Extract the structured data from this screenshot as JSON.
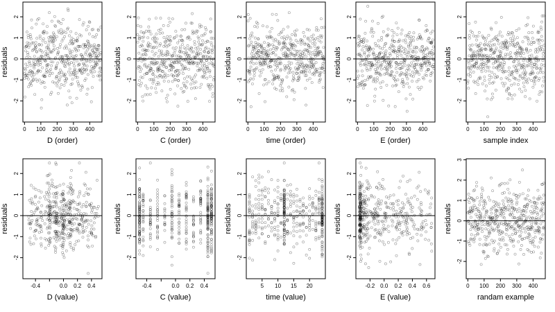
{
  "chart_data": [
    {
      "type": "scatter",
      "xlabel": "D (order)",
      "ylabel": "residuals",
      "xlim": [
        -10,
        475
      ],
      "ylim": [
        -3,
        2.7
      ],
      "xticks": [
        0,
        100,
        200,
        300,
        400
      ],
      "yticks": [
        -2,
        -1,
        0,
        1,
        2
      ],
      "reference_line_y": 0,
      "points": {
        "generator": "order",
        "n": 470,
        "seed": 11
      }
    },
    {
      "type": "scatter",
      "xlabel": "C (order)",
      "ylabel": "residuals",
      "xlim": [
        -10,
        475
      ],
      "ylim": [
        -3,
        2.7
      ],
      "xticks": [
        0,
        100,
        200,
        300,
        400
      ],
      "yticks": [
        -2,
        -1,
        0,
        1,
        2
      ],
      "reference_line_y": 0,
      "points": {
        "generator": "order",
        "n": 470,
        "seed": 12
      }
    },
    {
      "type": "scatter",
      "xlabel": "time (order)",
      "ylabel": "residuals",
      "xlim": [
        -10,
        475
      ],
      "ylim": [
        -3,
        2.7
      ],
      "xticks": [
        0,
        100,
        200,
        300,
        400
      ],
      "yticks": [
        -2,
        -1,
        0,
        1,
        2
      ],
      "reference_line_y": 0,
      "points": {
        "generator": "order",
        "n": 470,
        "seed": 13
      }
    },
    {
      "type": "scatter",
      "xlabel": "E (order)",
      "ylabel": "residuals",
      "xlim": [
        -10,
        475
      ],
      "ylim": [
        -3,
        2.7
      ],
      "xticks": [
        0,
        100,
        200,
        300,
        400
      ],
      "yticks": [
        -2,
        -1,
        0,
        1,
        2
      ],
      "reference_line_y": 0,
      "points": {
        "generator": "order",
        "n": 470,
        "seed": 14
      }
    },
    {
      "type": "scatter",
      "xlabel": "sample index",
      "ylabel": "residuals",
      "xlim": [
        -10,
        475
      ],
      "ylim": [
        -3,
        2.7
      ],
      "xticks": [
        0,
        100,
        200,
        300,
        400
      ],
      "yticks": [
        -2,
        -1,
        0,
        1,
        2
      ],
      "reference_line_y": 0,
      "points": {
        "generator": "order",
        "n": 470,
        "seed": 15
      }
    },
    {
      "type": "scatter",
      "xlabel": "D (value)",
      "ylabel": "residuals",
      "xlim": [
        -0.58,
        0.55
      ],
      "ylim": [
        -3,
        2.7
      ],
      "xticks": [
        -0.4,
        -0.2,
        0,
        0.2,
        0.4
      ],
      "xtick_labels": [
        "-0.4",
        "",
        "0.0",
        "0.2",
        "0.4"
      ],
      "yticks": [
        -2,
        -1,
        0,
        1,
        2
      ],
      "reference_line_y": 0,
      "points": {
        "generator": "continuous",
        "n": 470,
        "seed": 21,
        "range": [
          -0.5,
          0.5
        ],
        "clusters": [
          -0.2,
          -0.1,
          0,
          0.1
        ]
      }
    },
    {
      "type": "scatter",
      "xlabel": "C (value)",
      "ylabel": "residuals",
      "xlim": [
        -0.55,
        0.55
      ],
      "ylim": [
        -3,
        2.7
      ],
      "xticks": [
        -0.4,
        -0.2,
        0,
        0.2,
        0.4
      ],
      "xtick_labels": [
        "-0.4",
        "",
        "0.0",
        "0.2",
        "0.4"
      ],
      "yticks": [
        -2,
        -1,
        0,
        1,
        2
      ],
      "reference_line_y": 0,
      "points": {
        "generator": "discrete",
        "n": 470,
        "seed": 22,
        "levels": [
          -0.5,
          -0.45,
          -0.35,
          -0.25,
          -0.15,
          -0.05,
          0.05,
          0.15,
          0.25,
          0.35,
          0.45,
          0.5
        ],
        "heavy_levels": [
          -0.5,
          0.5,
          0.45
        ]
      }
    },
    {
      "type": "scatter",
      "xlabel": "time (value)",
      "ylabel": "residuals",
      "xlim": [
        0,
        25
      ],
      "ylim": [
        -3,
        2.7
      ],
      "xticks": [
        5,
        10,
        15,
        20
      ],
      "yticks": [
        -2,
        -1,
        0,
        1,
        2
      ],
      "reference_line_y": 0,
      "points": {
        "generator": "discrete",
        "n": 470,
        "seed": 23,
        "levels": [
          1,
          2,
          3,
          4,
          5,
          6,
          7,
          8,
          9,
          10,
          11,
          12,
          13,
          14,
          15,
          16,
          17,
          18,
          19,
          20,
          21,
          22,
          23,
          24
        ],
        "heavy_levels": [
          12,
          24
        ]
      }
    },
    {
      "type": "scatter",
      "xlabel": "E (value)",
      "ylabel": "residuals",
      "xlim": [
        -0.4,
        0.72
      ],
      "ylim": [
        -3,
        2.7
      ],
      "xticks": [
        -0.2,
        0,
        0.2,
        0.4,
        0.6
      ],
      "xtick_labels": [
        "-0.2",
        "0.0",
        "0.2",
        "0.4",
        "0.6"
      ],
      "yticks": [
        -2,
        -1,
        0,
        1,
        2
      ],
      "reference_line_y": 0,
      "points": {
        "generator": "skewed",
        "n": 470,
        "seed": 24,
        "range": [
          -0.35,
          0.68
        ],
        "left_edge": -0.35
      }
    },
    {
      "type": "scatter",
      "xlabel": "randam example",
      "ylabel": "residuals",
      "xlim": [
        -10,
        475
      ],
      "ylim": [
        -2.85,
        3.05
      ],
      "xticks": [
        0,
        100,
        200,
        300,
        400
      ],
      "yticks": [
        -2,
        -1,
        0,
        1,
        2,
        3
      ],
      "reference_line_y": 0,
      "points": {
        "generator": "order",
        "n": 470,
        "seed": 25
      }
    }
  ]
}
